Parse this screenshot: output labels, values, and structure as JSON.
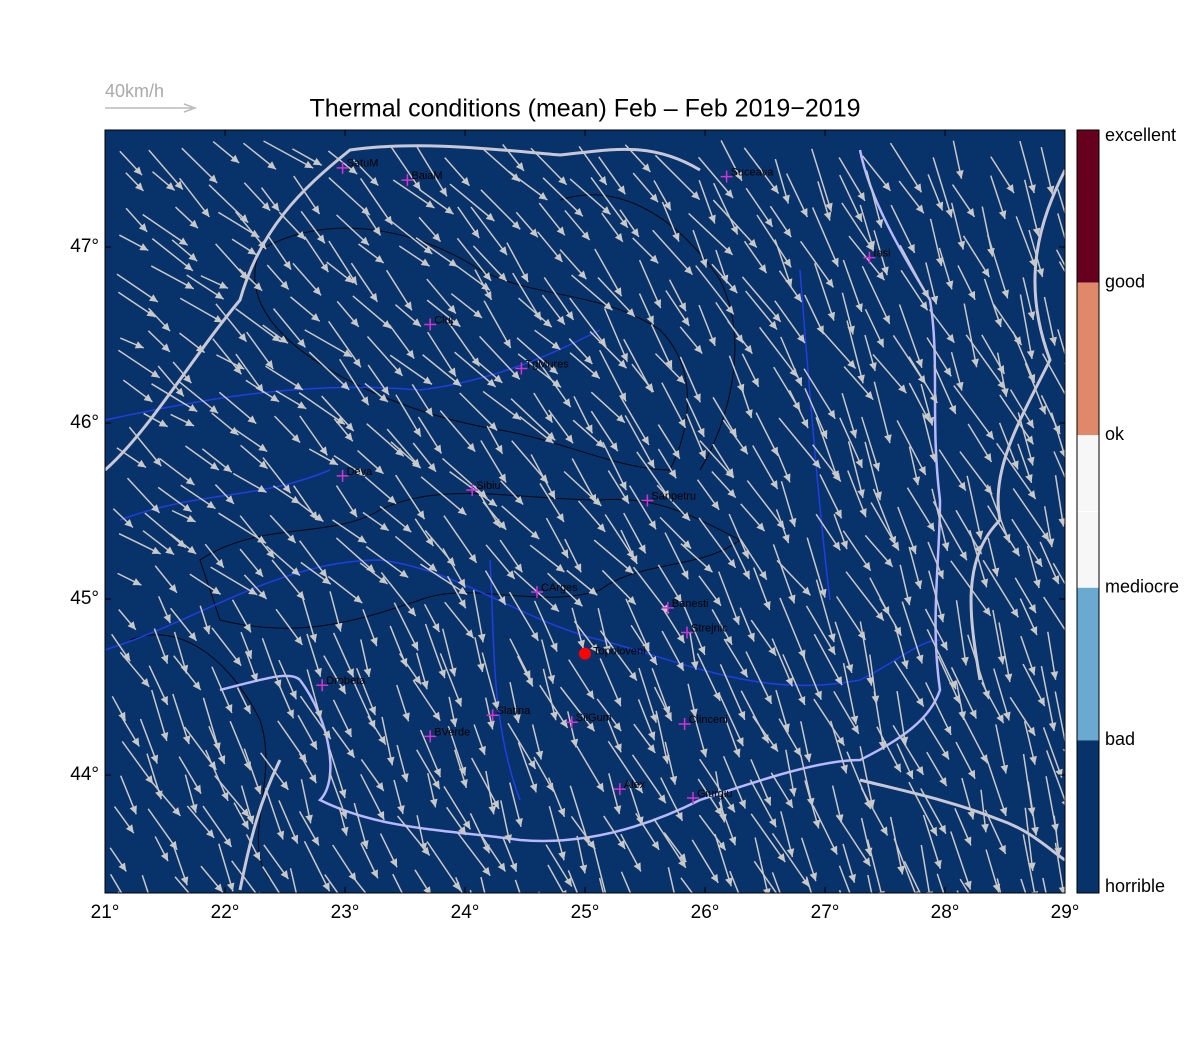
{
  "map": {
    "type": "map",
    "title": "Thermal conditions (mean) Feb – Feb  2019−2019",
    "wind_scale_label": "40km/h",
    "background_color": "#08326a",
    "xlim": [
      21,
      29
    ],
    "ylim": [
      43.33,
      47.665
    ],
    "xticks": [
      {
        "value": 21,
        "label": "21°"
      },
      {
        "value": 22,
        "label": "22°"
      },
      {
        "value": 23,
        "label": "23°"
      },
      {
        "value": 24,
        "label": "24°"
      },
      {
        "value": 25,
        "label": "25°"
      },
      {
        "value": 26,
        "label": "26°"
      },
      {
        "value": 27,
        "label": "27°"
      },
      {
        "value": 28,
        "label": "28°"
      },
      {
        "value": 29,
        "label": "29°"
      }
    ],
    "yticks": [
      {
        "value": 44,
        "label": "44°"
      },
      {
        "value": 45,
        "label": "45°"
      },
      {
        "value": 46,
        "label": "46°"
      },
      {
        "value": 47,
        "label": "47°"
      }
    ],
    "colorbar": {
      "labels": [
        "excellent",
        "good",
        "ok",
        "mediocre",
        "bad",
        "horrible"
      ],
      "colors": [
        "#67001f",
        "#e0896a",
        "#f7f7f7",
        "#6aa9d0",
        "#08326a"
      ]
    },
    "city_color": "#d633d6",
    "cities": [
      {
        "name": "SatuM",
        "lon": 22.98,
        "lat": 47.45
      },
      {
        "name": "BaiaM",
        "lon": 23.52,
        "lat": 47.38
      },
      {
        "name": "Suceava",
        "lon": 26.18,
        "lat": 47.4
      },
      {
        "name": "Iasi",
        "lon": 27.37,
        "lat": 46.94
      },
      {
        "name": "Cluj",
        "lon": 23.71,
        "lat": 46.56
      },
      {
        "name": "TgMures",
        "lon": 24.47,
        "lat": 46.31
      },
      {
        "name": "Deva",
        "lon": 22.98,
        "lat": 45.7
      },
      {
        "name": "Sibiu",
        "lon": 24.06,
        "lat": 45.62
      },
      {
        "name": "Sanpetru",
        "lon": 25.52,
        "lat": 45.56
      },
      {
        "name": "CArges",
        "lon": 24.6,
        "lat": 45.04
      },
      {
        "name": "Banesti",
        "lon": 25.69,
        "lat": 44.95
      },
      {
        "name": "Strejnic",
        "lon": 25.85,
        "lat": 44.81
      },
      {
        "name": "Drobeta",
        "lon": 22.81,
        "lat": 44.51
      },
      {
        "name": "Slatina",
        "lon": 24.23,
        "lat": 44.34
      },
      {
        "name": "SilGum",
        "lon": 24.89,
        "lat": 44.3
      },
      {
        "name": "Clinceni",
        "lon": 25.83,
        "lat": 44.29
      },
      {
        "name": "BVerde",
        "lon": 23.71,
        "lat": 44.22
      },
      {
        "name": "Alex",
        "lon": 25.29,
        "lat": 43.92
      },
      {
        "name": "Giurgiu",
        "lon": 25.9,
        "lat": 43.87
      }
    ],
    "highlight": {
      "name": "Topoloveni",
      "lon": 25.0,
      "lat": 44.69,
      "color": "#ff0000"
    }
  }
}
